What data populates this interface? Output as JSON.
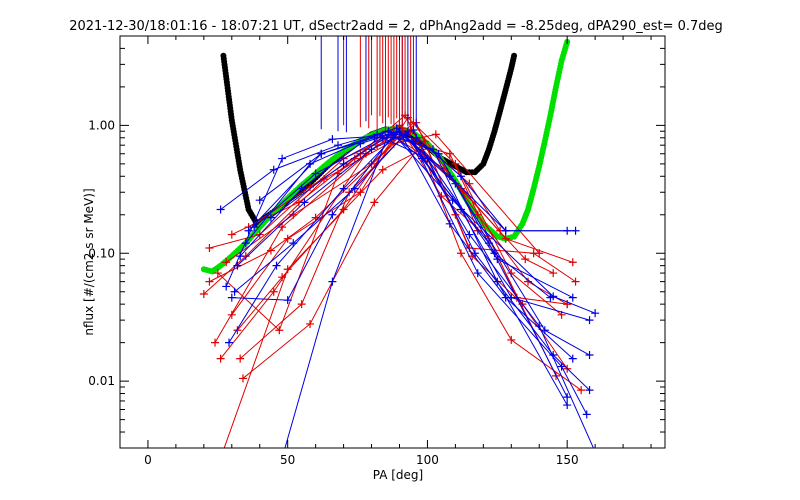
{
  "chart_data": {
    "type": "line",
    "title": "2021-12-30/18:01:16 - 18:07:21 UT, dSectr2add = 2, dPhAng2add = -8.25deg, dPA290_est=   0.7deg",
    "xlabel": "PA [deg]",
    "ylabel": "nflux [#/(cm2 s sr MeV)]",
    "xlim": [
      -10,
      185
    ],
    "ylim": [
      0.003,
      5
    ],
    "yscale": "log",
    "grid": false,
    "x_tick_labels": [
      "0",
      "50",
      "100",
      "150"
    ],
    "x_ticks": [
      0,
      50,
      100,
      150
    ],
    "y_tick_labels": [
      "0.01",
      "0.10",
      "1.00"
    ],
    "y_ticks": [
      0.01,
      0.1,
      1.0
    ],
    "colors": {
      "red": "#e00000",
      "blue": "#0000e0",
      "black": "#000000",
      "green": "#00e000"
    },
    "series": [
      {
        "color": "black",
        "style": "dots",
        "x": [
          27,
          30,
          33,
          36,
          39,
          42,
          46,
          50,
          55,
          60,
          65,
          70,
          75,
          80,
          85,
          90,
          95,
          100,
          105,
          110,
          114,
          117,
          120,
          122,
          124,
          126,
          128,
          130,
          131
        ],
        "y": [
          3.5,
          1.1,
          0.45,
          0.22,
          0.17,
          0.19,
          0.22,
          0.26,
          0.31,
          0.39,
          0.5,
          0.62,
          0.73,
          0.85,
          0.93,
          0.92,
          0.82,
          0.68,
          0.55,
          0.48,
          0.43,
          0.43,
          0.5,
          0.65,
          0.9,
          1.3,
          1.9,
          2.8,
          3.5
        ]
      },
      {
        "color": "green",
        "style": "dots",
        "x": [
          20,
          23,
          26,
          30,
          35,
          40,
          45,
          50,
          55,
          60,
          65,
          70,
          75,
          80,
          85,
          90,
          95,
          100,
          105,
          110,
          115,
          120,
          125,
          128,
          131,
          134,
          136,
          138,
          140,
          142,
          144,
          146,
          148,
          150
        ],
        "y": [
          0.075,
          0.072,
          0.08,
          0.095,
          0.12,
          0.16,
          0.21,
          0.27,
          0.34,
          0.42,
          0.52,
          0.63,
          0.74,
          0.84,
          0.92,
          0.95,
          0.87,
          0.72,
          0.54,
          0.37,
          0.24,
          0.17,
          0.135,
          0.13,
          0.135,
          0.17,
          0.22,
          0.32,
          0.48,
          0.75,
          1.2,
          2.0,
          3.2,
          4.5
        ]
      },
      {
        "color": "red",
        "style": "plus-line",
        "x": [
          20,
          35,
          63,
          92
        ],
        "y": [
          0.048,
          0.095,
          0.38,
          0.85
        ]
      },
      {
        "color": "red",
        "style": "plus-line",
        "x": [
          22,
          40,
          70,
          90,
          112,
          118
        ],
        "y": [
          0.11,
          0.14,
          0.55,
          0.88,
          0.32,
          0.15
        ]
      },
      {
        "color": "red",
        "style": "plus-line",
        "x": [
          24,
          48,
          82,
          94,
          115,
          126
        ],
        "y": [
          0.02,
          0.16,
          0.7,
          0.9,
          0.35,
          0.15
        ]
      },
      {
        "color": "red",
        "style": "plus-line",
        "x": [
          26,
          45,
          78,
          91,
          113,
          135,
          145
        ],
        "y": [
          0.015,
          0.05,
          0.6,
          0.95,
          0.3,
          0.09,
          0.07
        ]
      },
      {
        "color": "red",
        "style": "plus-line",
        "x": [
          28,
          52,
          80,
          95,
          118,
          136,
          150
        ],
        "y": [
          0.085,
          0.2,
          0.5,
          1.05,
          0.2,
          0.06,
          0.04
        ]
      },
      {
        "color": "red",
        "style": "plus-line",
        "x": [
          30,
          50,
          76,
          93,
          110,
          130,
          148
        ],
        "y": [
          0.033,
          0.13,
          0.3,
          1.15,
          0.5,
          0.07,
          0.033
        ]
      },
      {
        "color": "red",
        "style": "plus-line",
        "x": [
          32,
          48,
          70,
          88,
          108,
          132,
          150
        ],
        "y": [
          0.025,
          0.065,
          0.22,
          0.8,
          0.6,
          0.045,
          0.04
        ]
      },
      {
        "color": "red",
        "style": "plus-line",
        "x": [
          33,
          55,
          72,
          96,
          115,
          138,
          153
        ],
        "y": [
          0.015,
          0.04,
          0.3,
          1.05,
          0.11,
          0.1,
          0.06
        ]
      },
      {
        "color": "red",
        "style": "plus-line",
        "x": [
          34,
          58,
          81,
          99,
          116,
          134,
          150
        ],
        "y": [
          0.0105,
          0.028,
          0.25,
          0.75,
          0.095,
          0.04,
          0.0125
        ]
      },
      {
        "color": "red",
        "style": "plus-line",
        "x": [
          26,
          50,
          84,
          98,
          112,
          130,
          155
        ],
        "y": [
          0.0025,
          0.075,
          0.45,
          0.65,
          0.1,
          0.021,
          0.0085
        ]
      },
      {
        "color": "red",
        "style": "plus-line",
        "x": [
          36,
          58,
          76,
          92,
          110
        ],
        "y": [
          0.16,
          0.33,
          0.6,
          1.2,
          0.2
        ]
      },
      {
        "color": "red",
        "style": "plus-line",
        "x": [
          25,
          47,
          68,
          85,
          106,
          128,
          152
        ],
        "y": [
          0.07,
          0.025,
          0.42,
          0.9,
          0.46,
          0.13,
          0.085
        ]
      },
      {
        "color": "red",
        "style": "plus-line",
        "x": [
          22,
          44,
          60,
          88,
          103,
          140
        ],
        "y": [
          0.06,
          0.105,
          0.19,
          0.72,
          0.85,
          0.1
        ]
      },
      {
        "color": "red",
        "style": "plus-line",
        "x": [
          30,
          54,
          74,
          90,
          105,
          122,
          146
        ],
        "y": [
          0.14,
          0.25,
          0.55,
          1.0,
          0.28,
          0.13,
          0.011
        ]
      },
      {
        "color": "blue",
        "style": "plus-line",
        "x": [
          26,
          45,
          68,
          89,
          108,
          128,
          153
        ],
        "y": [
          0.22,
          0.45,
          0.7,
          0.95,
          0.4,
          0.15,
          0.15
        ]
      },
      {
        "color": "blue",
        "style": "plus-line",
        "x": [
          28,
          48,
          66,
          92,
          112,
          130,
          158
        ],
        "y": [
          0.055,
          0.55,
          0.78,
          0.85,
          0.22,
          0.045,
          0.03
        ]
      },
      {
        "color": "blue",
        "style": "plus-line",
        "x": [
          29,
          46,
          70,
          90,
          110,
          142,
          158
        ],
        "y": [
          0.02,
          0.08,
          0.32,
          0.9,
          0.35,
          0.025,
          0.016
        ]
      },
      {
        "color": "blue",
        "style": "plus-line",
        "x": [
          30,
          50,
          66,
          88,
          109,
          145,
          160
        ],
        "y": [
          0.045,
          0.043,
          0.2,
          0.85,
          0.26,
          0.046,
          0.034
        ]
      },
      {
        "color": "blue",
        "style": "plus-line",
        "x": [
          31,
          52,
          74,
          93,
          118,
          148,
          157
        ],
        "y": [
          0.05,
          0.12,
          0.32,
          0.9,
          0.07,
          0.013,
          0.0055
        ]
      },
      {
        "color": "blue",
        "style": "plus-line",
        "x": [
          32,
          56,
          80,
          95,
          117,
          145,
          158
        ],
        "y": [
          0.08,
          0.25,
          0.65,
          0.92,
          0.1,
          0.016,
          0.0085
        ]
      },
      {
        "color": "blue",
        "style": "plus-line",
        "x": [
          33,
          55,
          76,
          90,
          108,
          128,
          152
        ],
        "y": [
          0.095,
          0.32,
          0.72,
          0.9,
          0.17,
          0.045,
          0.015
        ]
      },
      {
        "color": "blue",
        "style": "plus-line",
        "x": [
          35,
          58,
          82,
          95,
          115,
          140,
          160
        ],
        "y": [
          0.12,
          0.5,
          0.85,
          0.75,
          0.14,
          0.027,
          0.0028
        ]
      },
      {
        "color": "blue",
        "style": "plus-line",
        "x": [
          36,
          62,
          86,
          98,
          122,
          150
        ],
        "y": [
          0.15,
          0.6,
          0.9,
          0.55,
          0.12,
          0.0075
        ]
      },
      {
        "color": "blue",
        "style": "plus-line",
        "x": [
          38,
          60,
          84,
          100,
          125,
          152
        ],
        "y": [
          0.16,
          0.42,
          0.8,
          0.55,
          0.09,
          0.045
        ]
      },
      {
        "color": "blue",
        "style": "plus-line",
        "x": [
          48,
          66,
          86,
          102,
          125,
          150
        ],
        "y": [
          0.0025,
          0.06,
          0.85,
          0.65,
          0.06,
          0.0065
        ]
      },
      {
        "color": "blue",
        "style": "plus-line",
        "x": [
          40,
          62,
          81,
          96,
          112,
          128,
          150
        ],
        "y": [
          0.26,
          0.6,
          0.8,
          0.8,
          0.4,
          0.15,
          0.15
        ]
      },
      {
        "color": "blue",
        "style": "plus-line",
        "x": [
          44,
          70,
          88,
          104,
          124,
          144
        ],
        "y": [
          0.19,
          0.5,
          0.88,
          0.6,
          0.1,
          0.045
        ]
      }
    ],
    "vertical_markers": [
      {
        "color": "blue",
        "x": [
          62,
          68,
          71,
          78,
          91,
          93,
          96
        ]
      },
      {
        "color": "red",
        "x": [
          70,
          76,
          79,
          80,
          82,
          83,
          84,
          85,
          86,
          87,
          88,
          89,
          90,
          91,
          92,
          94,
          95
        ]
      }
    ]
  }
}
